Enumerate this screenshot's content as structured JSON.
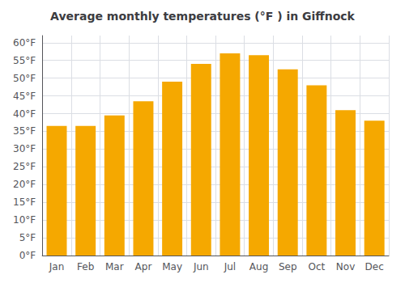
{
  "chart_data": {
    "type": "bar",
    "title": "Average monthly temperatures (°F ) in Giffnock",
    "categories": [
      "Jan",
      "Feb",
      "Mar",
      "Apr",
      "May",
      "Jun",
      "Jul",
      "Aug",
      "Sep",
      "Oct",
      "Nov",
      "Dec"
    ],
    "values": [
      36.5,
      36.5,
      39.5,
      43.5,
      49.0,
      54.0,
      57.0,
      56.5,
      52.5,
      48.0,
      41.0,
      38.0
    ],
    "color": "#F5A800",
    "ylim": [
      0,
      62
    ],
    "yticks": [
      {
        "value": 0,
        "label": "0°F"
      },
      {
        "value": 5,
        "label": "5°F"
      },
      {
        "value": 10,
        "label": "10°F"
      },
      {
        "value": 15,
        "label": "15°F"
      },
      {
        "value": 20,
        "label": "20°F"
      },
      {
        "value": 25,
        "label": "25°F"
      },
      {
        "value": 30,
        "label": "30°F"
      },
      {
        "value": 35,
        "label": "35°F"
      },
      {
        "value": 40,
        "label": "40°F"
      },
      {
        "value": 45,
        "label": "45°F"
      },
      {
        "value": 50,
        "label": "50°F"
      },
      {
        "value": 55,
        "label": "55°F"
      },
      {
        "value": 60,
        "label": "60°F"
      }
    ],
    "grid": true
  }
}
